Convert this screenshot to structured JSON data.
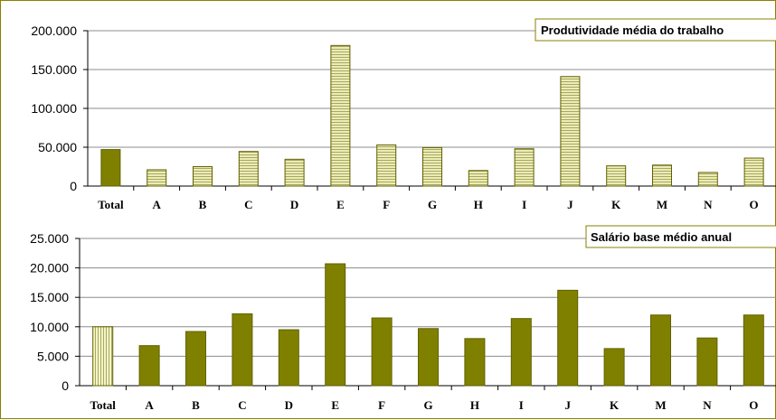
{
  "chart_data": [
    {
      "type": "bar",
      "title": "Produtividade média do trabalho",
      "categories": [
        "Total",
        "A",
        "B",
        "C",
        "D",
        "E",
        "F",
        "G",
        "H",
        "I",
        "J",
        "K",
        "M",
        "N",
        "O"
      ],
      "values": [
        47000,
        21000,
        25000,
        44500,
        34500,
        181000,
        53000,
        49500,
        20000,
        48000,
        141000,
        26000,
        27000,
        17500,
        36000
      ],
      "ylim": [
        0,
        200000
      ],
      "yticks": [
        "0",
        "50.000",
        "100.000",
        "150.000",
        "200.000"
      ],
      "ytick_values": [
        0,
        50000,
        100000,
        150000,
        200000
      ],
      "grid": true,
      "highlight_first": true,
      "colors": {
        "total": "#808000",
        "bars": "#e8e8b0",
        "bar_stripes": "#b0b060",
        "bar_edge": "#606000"
      }
    },
    {
      "type": "bar",
      "title": "Salário base médio anual",
      "categories": [
        "Total",
        "A",
        "B",
        "C",
        "D",
        "E",
        "F",
        "G",
        "H",
        "I",
        "J",
        "K",
        "M",
        "N",
        "O"
      ],
      "values": [
        10000,
        6800,
        9200,
        12200,
        9500,
        20700,
        11500,
        9700,
        8000,
        11400,
        16200,
        6300,
        12000,
        8100,
        12000
      ],
      "ylim": [
        0,
        25000
      ],
      "yticks": [
        "0",
        "5.000",
        "10.000",
        "15.000",
        "20.000",
        "25.000"
      ],
      "ytick_values": [
        0,
        5000,
        10000,
        15000,
        20000,
        25000
      ],
      "grid": true,
      "highlight_first": true,
      "colors": {
        "total": "#f0f0c0",
        "total_stripes": "#b0b060",
        "bars": "#808000",
        "bar_edge": "#606000"
      }
    }
  ]
}
